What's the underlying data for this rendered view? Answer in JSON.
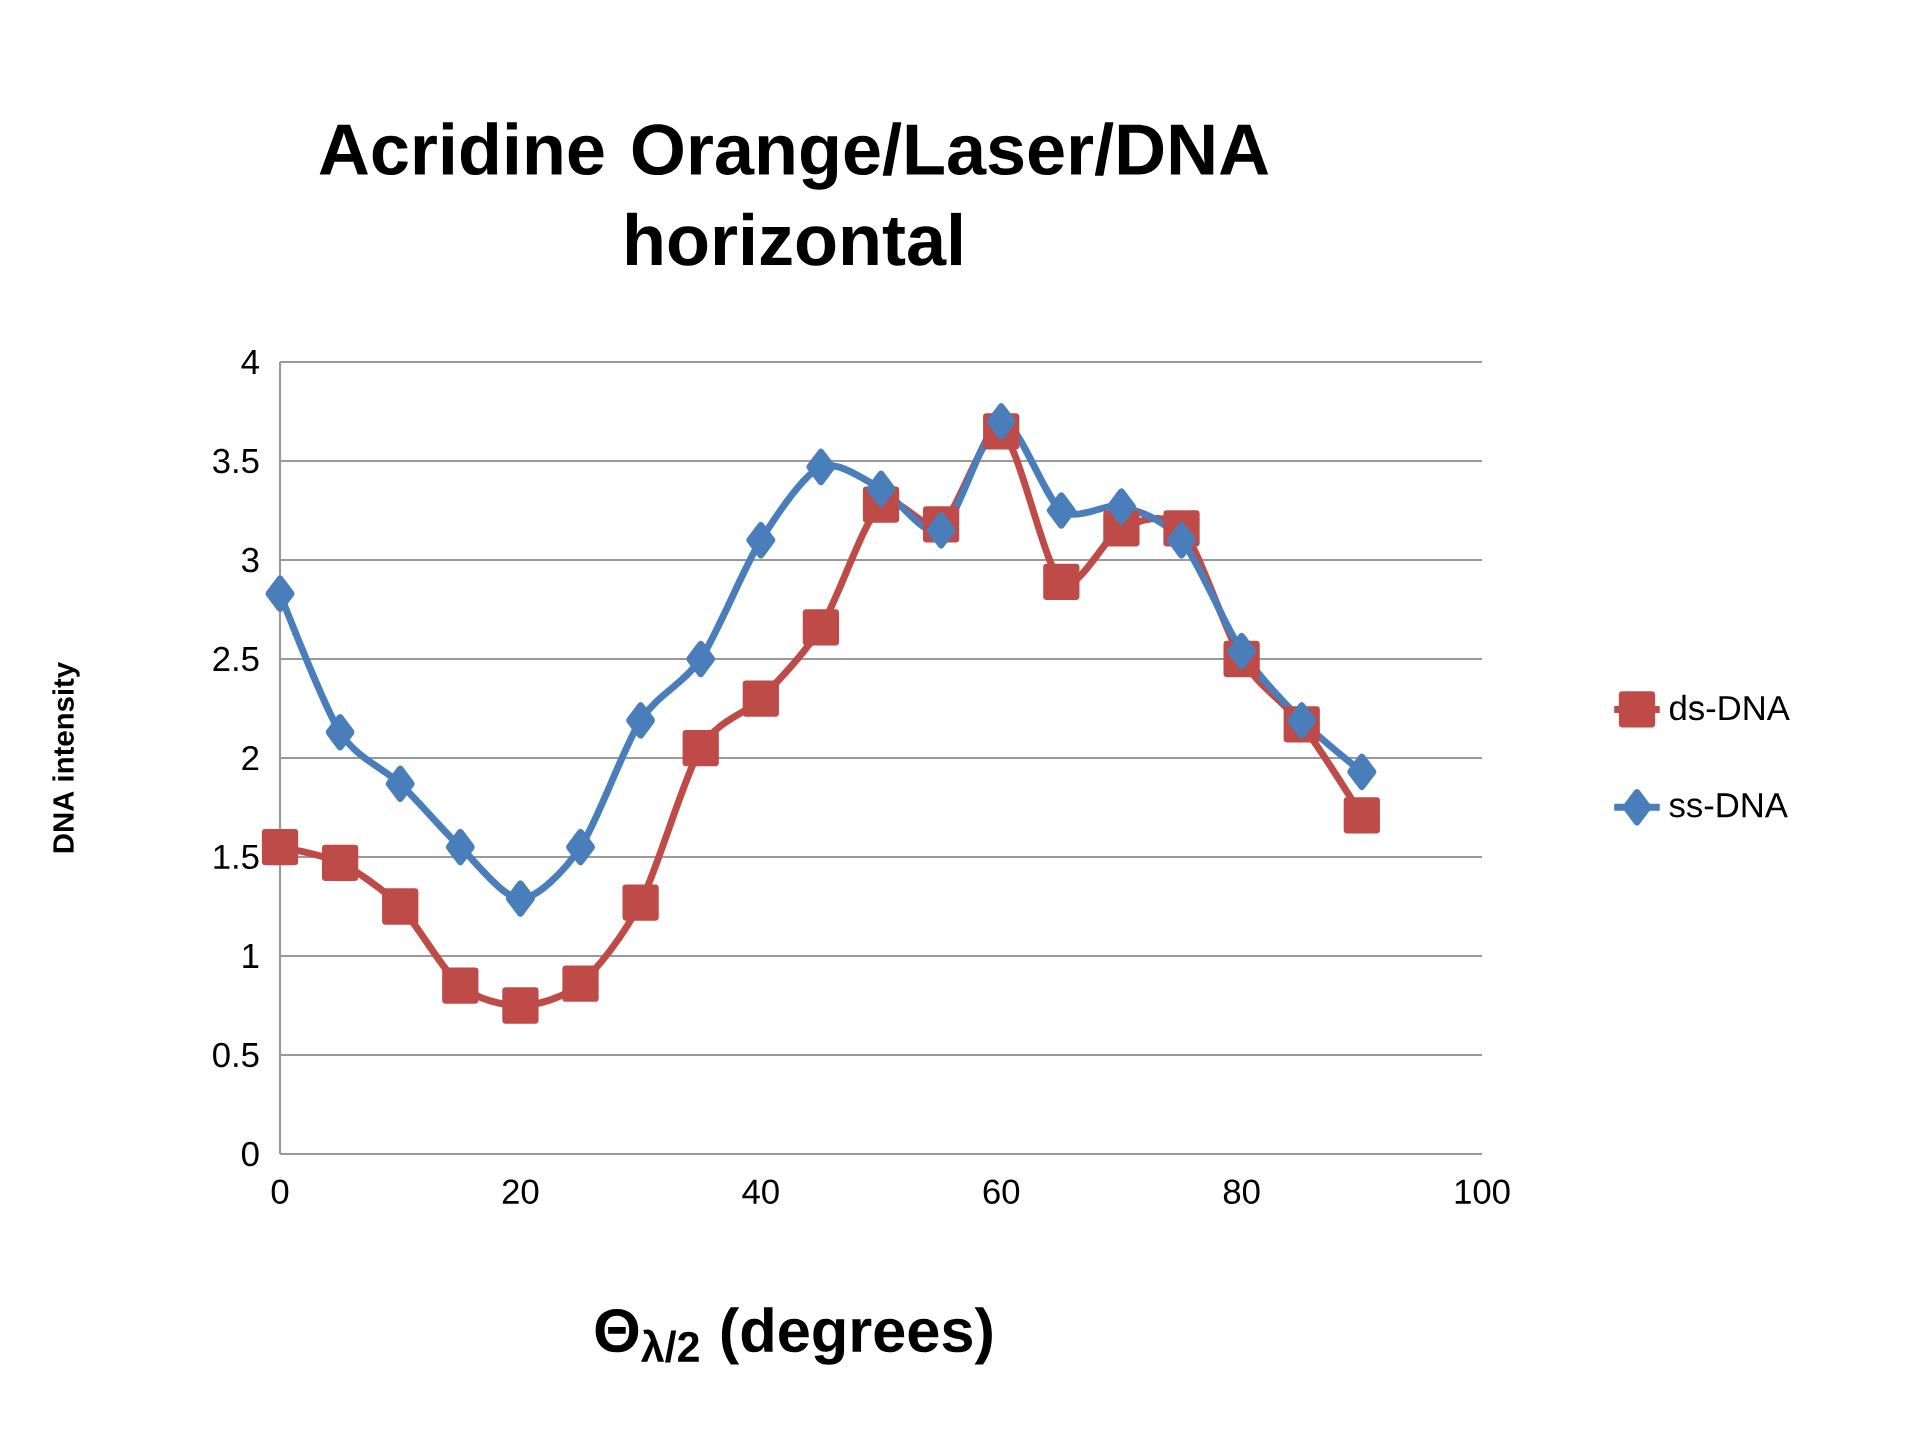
{
  "chart_data": {
    "type": "line",
    "title": "Acridine Orange/Laser/DNA horizontal",
    "xlabel": "Θ$_{λ/2}$ (degrees)",
    "ylabel": "DNA intensity",
    "x": [
      0,
      5,
      10,
      15,
      20,
      25,
      30,
      35,
      40,
      45,
      50,
      55,
      60,
      65,
      70,
      75,
      80,
      85,
      90
    ],
    "series": [
      {
        "name": "ds-DNA",
        "color": "#be4b48",
        "marker": "square",
        "values": [
          1.55,
          1.47,
          1.25,
          0.85,
          0.75,
          0.86,
          1.27,
          2.05,
          2.3,
          2.66,
          3.28,
          3.18,
          3.65,
          2.89,
          3.16,
          3.16,
          2.5,
          2.17,
          1.71
        ]
      },
      {
        "name": "ss-DNA",
        "color": "#4a7ebb",
        "marker": "diamond",
        "values": [
          2.83,
          2.13,
          1.87,
          1.55,
          1.29,
          1.55,
          2.19,
          2.5,
          3.1,
          3.47,
          3.36,
          3.15,
          3.7,
          3.25,
          3.27,
          3.1,
          2.54,
          2.19,
          1.93
        ]
      }
    ],
    "xlim": [
      0,
      100
    ],
    "xticks": [
      0,
      20,
      40,
      60,
      80,
      100
    ],
    "ylim": [
      0,
      4
    ],
    "yticks": [
      0,
      0.5,
      1,
      1.5,
      2,
      2.5,
      3,
      3.5,
      4
    ],
    "grid": "y",
    "legend": "right"
  }
}
